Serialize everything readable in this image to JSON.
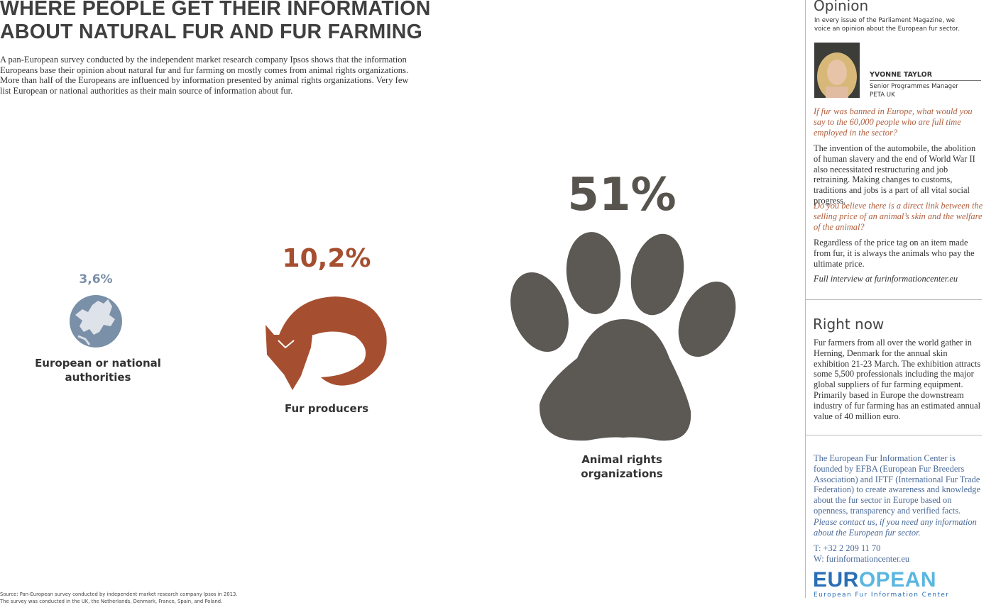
{
  "header": {
    "title": [
      "WHERE PEOPLE GET THEIR INFORMATION",
      "ABOUT NATURAL FUR AND FUR FARMING"
    ],
    "intro": "A pan-European survey conducted by the independent market research company Ipsos shows that the information Europeans base their opinion about natural fur and fur farming on mostly comes from animal rights organizations. More than half of the Europeans are influenced by information presented by animal rights organizations. Very few list European or national authorities as their main source of information about fur."
  },
  "stats": [
    {
      "value": "3,6%",
      "label": "European or national authorities"
    },
    {
      "value": "10,2%",
      "label": "Fur producers"
    },
    {
      "value": "51%",
      "label": "Animal rights organizations"
    }
  ],
  "source": [
    "Source: Pan-European survey conducted by independent market research company Ipsos in 2013.",
    "The survey was conducted in the UK, the Netherlands, Denmark, France, Spain, and Poland."
  ],
  "opinion": {
    "title": "Opinion",
    "intro": "In every issue of the Parliament Magazine, we voice an opinion about the European fur sector.",
    "name": "YVONNE TAYLOR",
    "role": [
      "Senior Programmes Manager",
      "PETA UK"
    ],
    "question1": "If fur was banned in Europe, what would you say to the 60,000 people who are full time employed in the sector?",
    "answer1": "The invention of the automobile, the abolition of human slavery and the end of World War II also necessitated restructuring and job retraining. Making changes to customs, traditions and jobs is a part of all vital social progress.",
    "question2": "Do you believe there is a direct link between the selling price of an animal’s skin and the welfare of the animal?",
    "answer2": "Regardless of the price tag on an item made from fur, it is always the animals who pay the ultimate price.",
    "link": "Full interview at furinformationcenter.eu"
  },
  "right_now": {
    "title": "Right now",
    "text": "Fur farmers from all over the world gather in Herning, Denmark for the annual skin exhibition 21-23 March. The exhibition attracts some 5,500 professionals including the major global suppliers of fur farming equipment. Primarily based in Europe the downstream industry of fur farming has an estimated annual value of 40 million euro."
  },
  "about": {
    "text": "The European Fur Information Center is founded by EFBA (European Fur Breeders Association) and IFTF (International Fur Trade Federation) to create awareness and knowledge about the fur sector in Europe based on openness, transparency and verified facts.",
    "contact": "Please contact us, if you need any information about the European fur sector.",
    "phone": "T:   +32 2 209 11 70",
    "web": "W:  furinformationcenter.eu",
    "logo": [
      "EUR",
      "OPEAN"
    ],
    "logo_sub": "European Fur Information Center"
  }
}
